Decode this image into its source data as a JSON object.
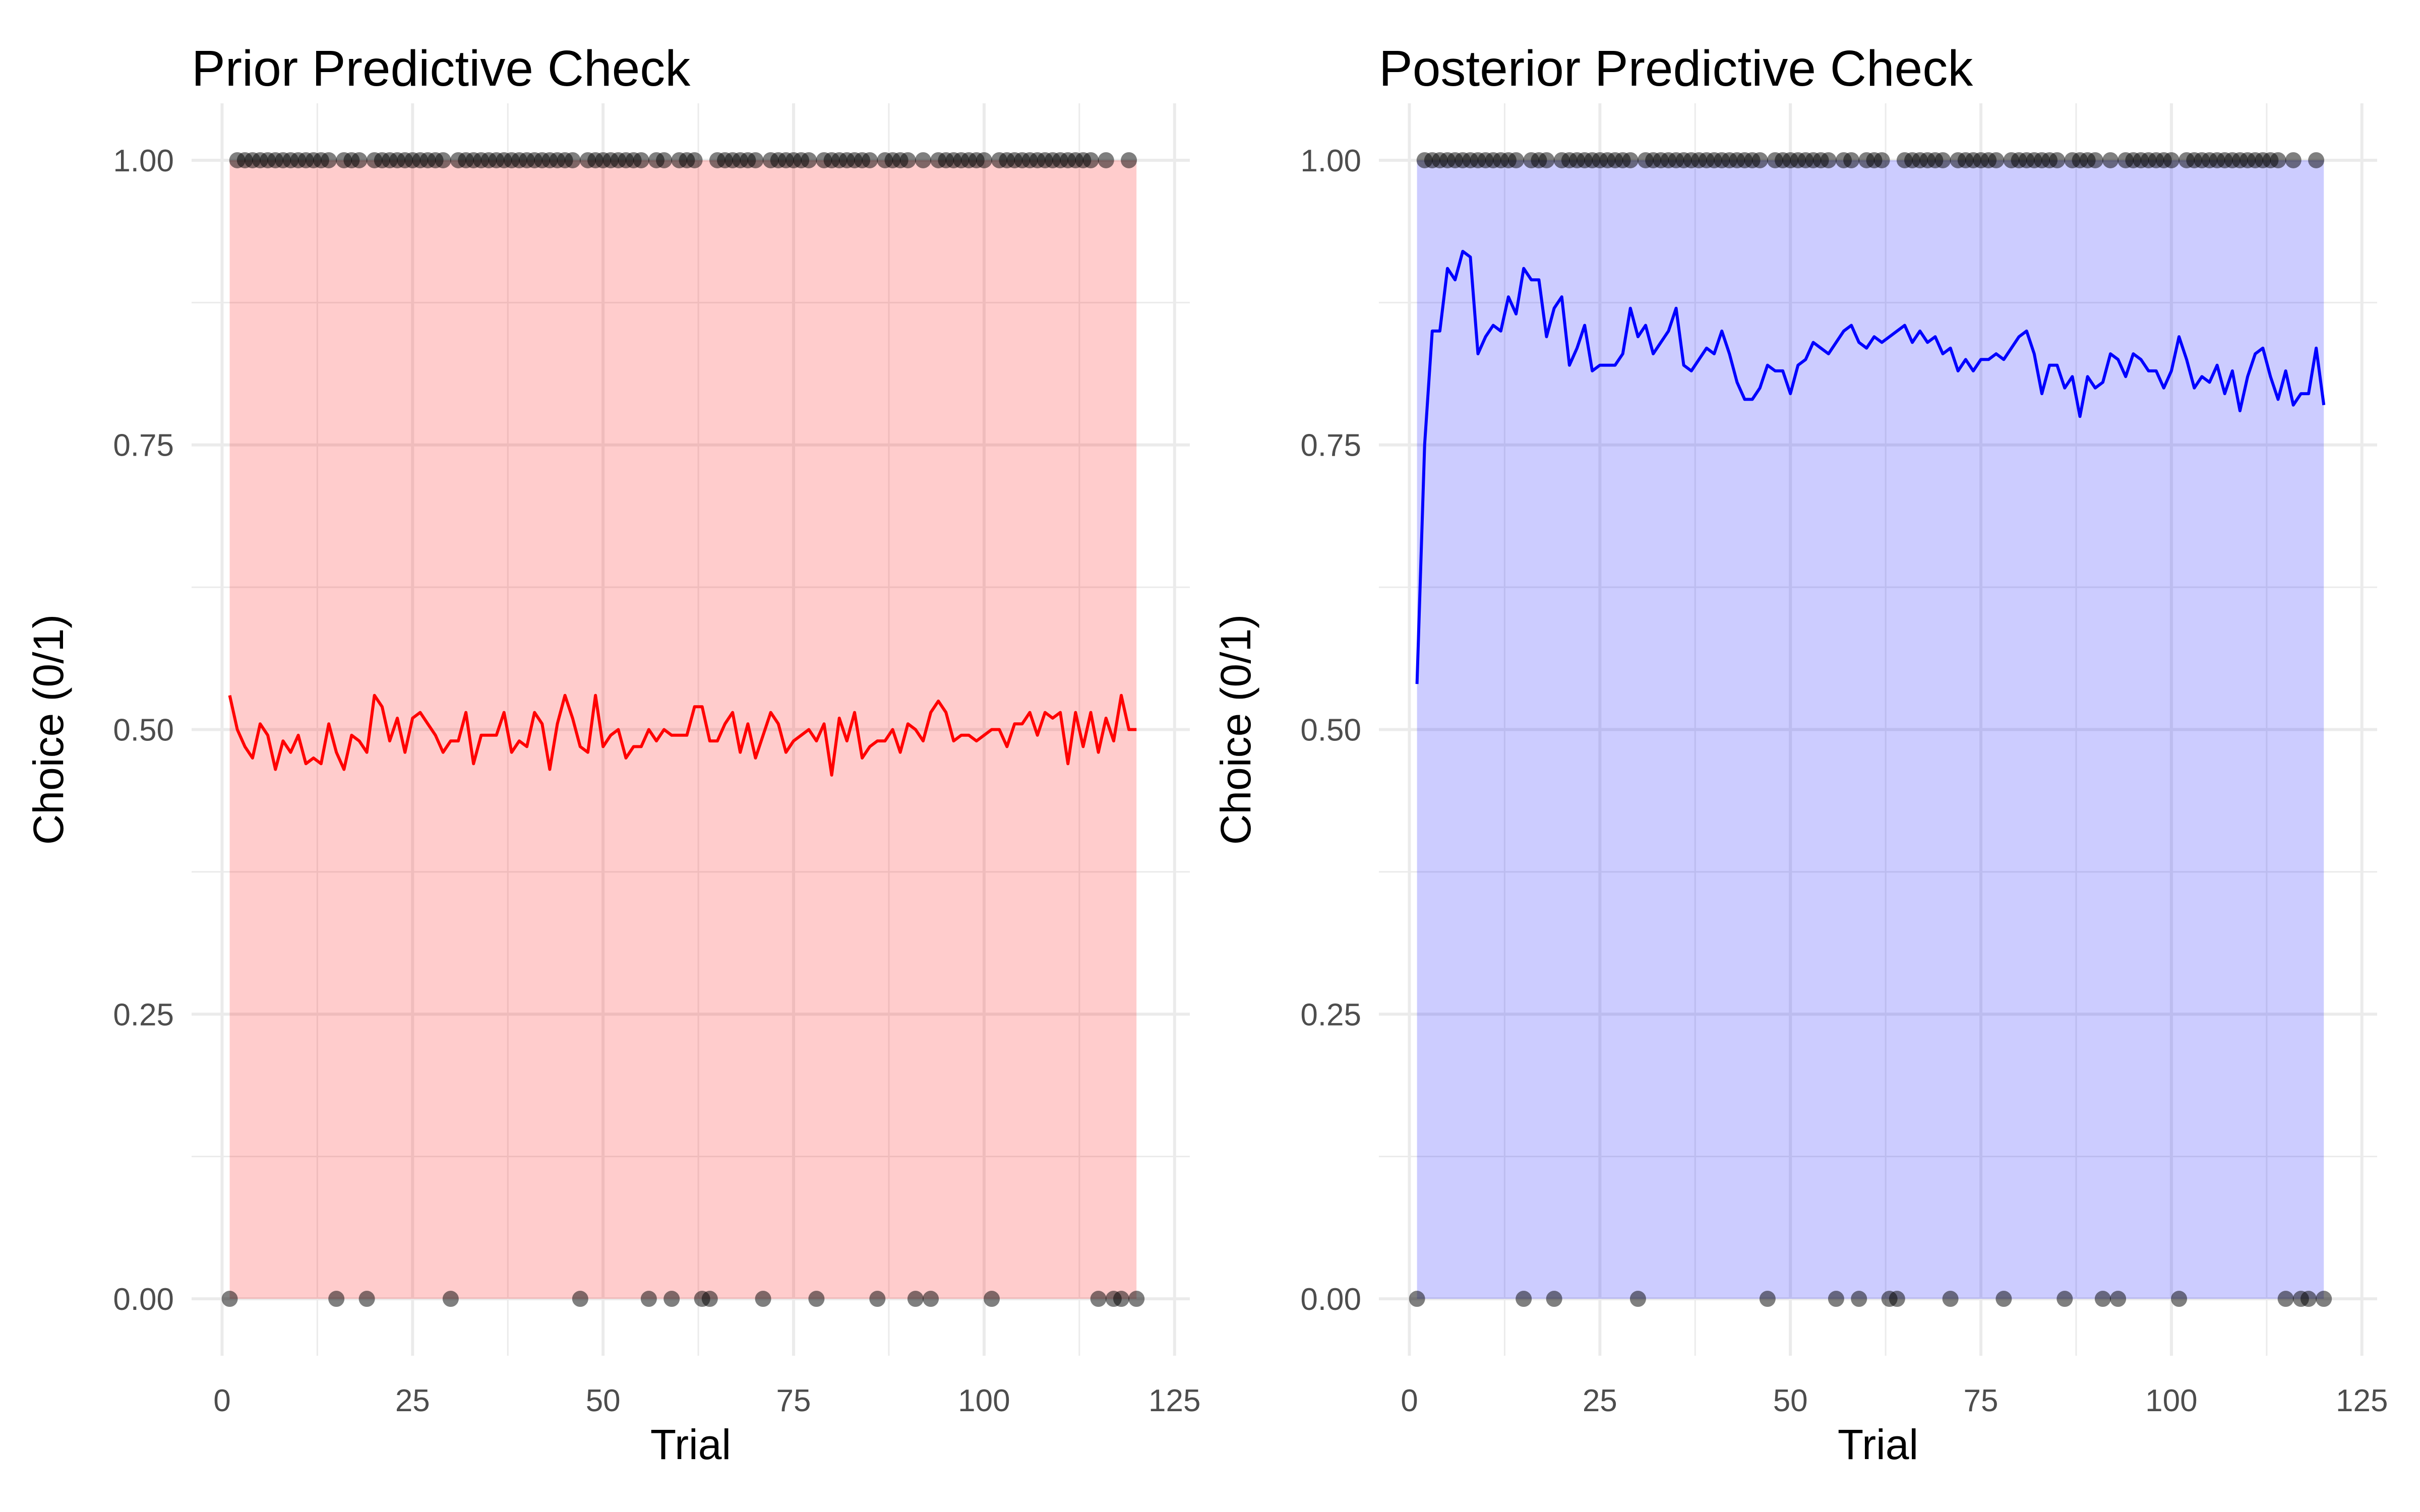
{
  "chart_data": [
    {
      "type": "line",
      "title": "Prior Predictive Check",
      "xlabel": "Trial",
      "ylabel": "Choice (0/1)",
      "xlim": [
        -4,
        127
      ],
      "ylim": [
        -0.05,
        1.05
      ],
      "xticks": [
        0,
        25,
        50,
        75,
        100,
        125
      ],
      "yticks": [
        0,
        0.25,
        0.5,
        0.75,
        1
      ],
      "ytick_labels": [
        "0.00",
        "0.25",
        "0.50",
        "0.75",
        "1.00"
      ],
      "grid": true,
      "ribbon": {
        "x_from": 1,
        "x_to": 120,
        "lower": 0,
        "upper": 1,
        "color": "#ff0000",
        "opacity": 0.2
      },
      "line_color": "#ff0000",
      "line_y": [
        0.53,
        0.5,
        0.485,
        0.475,
        0.505,
        0.495,
        0.465,
        0.49,
        0.48,
        0.495,
        0.47,
        0.475,
        0.47,
        0.505,
        0.48,
        0.465,
        0.495,
        0.49,
        0.48,
        0.53,
        0.52,
        0.49,
        0.51,
        0.48,
        0.51,
        0.515,
        0.505,
        0.495,
        0.48,
        0.49,
        0.49,
        0.515,
        0.47,
        0.495,
        0.495,
        0.495,
        0.515,
        0.48,
        0.49,
        0.485,
        0.515,
        0.505,
        0.465,
        0.505,
        0.53,
        0.51,
        0.485,
        0.48,
        0.53,
        0.485,
        0.495,
        0.5,
        0.475,
        0.485,
        0.485,
        0.5,
        0.49,
        0.5,
        0.495,
        0.495,
        0.495,
        0.52,
        0.52,
        0.49,
        0.49,
        0.505,
        0.515,
        0.48,
        0.505,
        0.475,
        0.495,
        0.515,
        0.505,
        0.48,
        0.49,
        0.495,
        0.5,
        0.49,
        0.505,
        0.46,
        0.51,
        0.49,
        0.515,
        0.475,
        0.485,
        0.49,
        0.49,
        0.5,
        0.48,
        0.505,
        0.5,
        0.49,
        0.515,
        0.525,
        0.515,
        0.49,
        0.495,
        0.495,
        0.49,
        0.495,
        0.5,
        0.5,
        0.485,
        0.505,
        0.505,
        0.515,
        0.495,
        0.515,
        0.51,
        0.515,
        0.47,
        0.515,
        0.485,
        0.515,
        0.48,
        0.51,
        0.49,
        0.53,
        0.5,
        0.5
      ],
      "observed_zero_trials": [
        1,
        15,
        19,
        30,
        47,
        56,
        59,
        63,
        64,
        71,
        78,
        86,
        91,
        93,
        101,
        115,
        117,
        118,
        120
      ]
    },
    {
      "type": "line",
      "title": "Posterior Predictive Check",
      "xlabel": "Trial",
      "ylabel": "Choice (0/1)",
      "xlim": [
        -4,
        127
      ],
      "ylim": [
        -0.05,
        1.05
      ],
      "xticks": [
        0,
        25,
        50,
        75,
        100,
        125
      ],
      "yticks": [
        0,
        0.25,
        0.5,
        0.75,
        1
      ],
      "ytick_labels": [
        "0.00",
        "0.25",
        "0.50",
        "0.75",
        "1.00"
      ],
      "grid": true,
      "ribbon": {
        "x_from": 1,
        "x_to": 120,
        "lower": 0,
        "upper": 1,
        "color": "#0000ff",
        "opacity": 0.2
      },
      "line_color": "#0000ff",
      "line_y": [
        0.54,
        0.75,
        0.85,
        0.85,
        0.905,
        0.895,
        0.92,
        0.915,
        0.83,
        0.845,
        0.855,
        0.85,
        0.88,
        0.865,
        0.905,
        0.895,
        0.895,
        0.845,
        0.87,
        0.88,
        0.82,
        0.835,
        0.855,
        0.815,
        0.82,
        0.82,
        0.82,
        0.83,
        0.87,
        0.845,
        0.855,
        0.83,
        0.84,
        0.85,
        0.87,
        0.82,
        0.815,
        0.825,
        0.835,
        0.83,
        0.85,
        0.83,
        0.805,
        0.79,
        0.79,
        0.8,
        0.82,
        0.815,
        0.815,
        0.795,
        0.82,
        0.825,
        0.84,
        0.835,
        0.83,
        0.84,
        0.85,
        0.855,
        0.84,
        0.835,
        0.845,
        0.84,
        0.845,
        0.85,
        0.855,
        0.84,
        0.85,
        0.84,
        0.845,
        0.83,
        0.835,
        0.815,
        0.825,
        0.815,
        0.825,
        0.825,
        0.83,
        0.825,
        0.835,
        0.845,
        0.85,
        0.83,
        0.795,
        0.82,
        0.82,
        0.8,
        0.81,
        0.775,
        0.81,
        0.8,
        0.805,
        0.83,
        0.825,
        0.81,
        0.83,
        0.825,
        0.815,
        0.815,
        0.8,
        0.815,
        0.845,
        0.825,
        0.8,
        0.81,
        0.805,
        0.82,
        0.795,
        0.815,
        0.78,
        0.81,
        0.83,
        0.835,
        0.81,
        0.79,
        0.815,
        0.785,
        0.795,
        0.795,
        0.835,
        0.785
      ],
      "observed_zero_trials": [
        1,
        15,
        19,
        30,
        47,
        56,
        59,
        63,
        64,
        71,
        78,
        86,
        91,
        93,
        101,
        115,
        117,
        118,
        120
      ]
    }
  ]
}
